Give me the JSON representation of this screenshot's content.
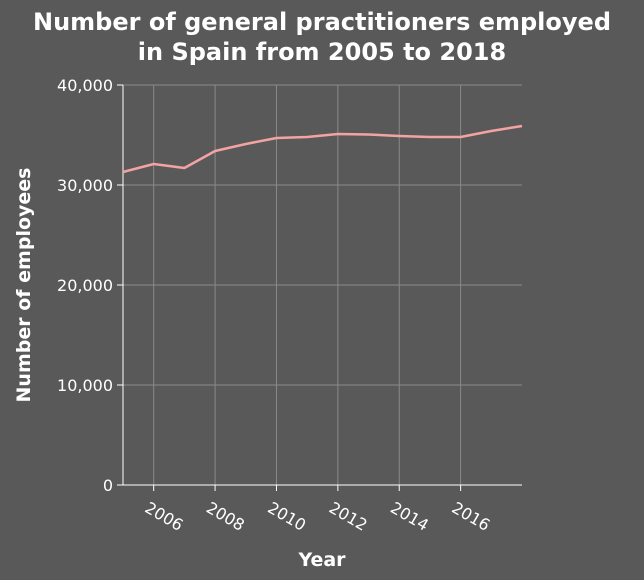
{
  "chart_data": {
    "type": "line",
    "title_lines": [
      "Number of general practitioners employed",
      "in Spain from 2005 to 2018"
    ],
    "xlabel": "Year",
    "ylabel": "Number of employees",
    "xlim": [
      2005,
      2018
    ],
    "ylim": [
      0,
      40000
    ],
    "x_ticks": [
      2006,
      2008,
      2010,
      2012,
      2014,
      2016
    ],
    "y_ticks": [
      0,
      10000,
      20000,
      30000,
      40000
    ],
    "y_tick_labels": [
      "0",
      "10,000",
      "20,000",
      "30,000",
      "40,000"
    ],
    "grid": true,
    "line_color": "#f4a3a3",
    "series": [
      {
        "x": [
          2005,
          2006,
          2007,
          2008,
          2009,
          2010,
          2011,
          2012,
          2013,
          2014,
          2015,
          2016,
          2017,
          2018
        ],
        "values": [
          31300,
          32100,
          31700,
          33400,
          34100,
          34700,
          34800,
          35100,
          35050,
          34900,
          34800,
          34800,
          35400,
          35900
        ]
      }
    ]
  }
}
